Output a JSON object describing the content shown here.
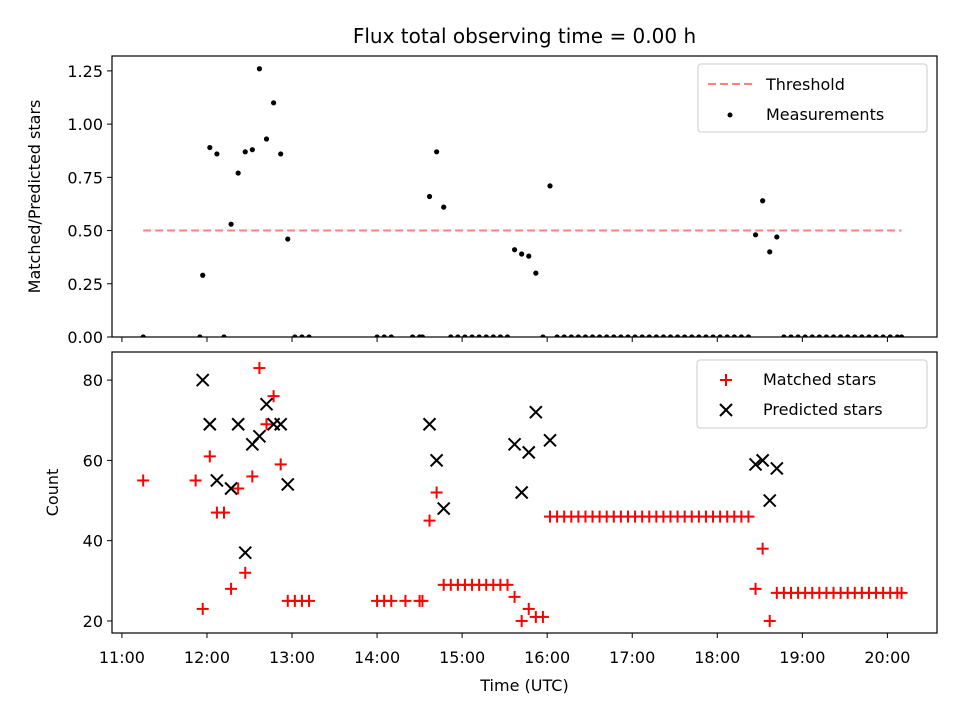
{
  "chart_data": [
    {
      "type": "scatter",
      "title": "Flux total observing time = 0.00 h",
      "xlabel": "",
      "ylabel": "Matched/Predicted stars",
      "xlim": [
        "10:53",
        "20:35"
      ],
      "ylim": [
        0,
        1.32
      ],
      "yticks": [
        0,
        0.25,
        0.5,
        0.75,
        1.0,
        1.25
      ],
      "ytick_labels": [
        "0.00",
        "0.25",
        "0.50",
        "0.75",
        "1.00",
        "1.25"
      ],
      "legend_position": "top-right",
      "threshold": {
        "name": "Threshold",
        "x": [
          "11:15",
          "20:10"
        ],
        "y": 0.5,
        "color": "#ff7f7f",
        "style": "dashed"
      },
      "series": [
        {
          "name": "Measurements",
          "marker": "dot",
          "color": "#000000",
          "points": [
            [
              "11:15",
              0
            ],
            [
              "11:55",
              0
            ],
            [
              "11:57",
              0.29
            ],
            [
              "12:02",
              0.89
            ],
            [
              "12:07",
              0.86
            ],
            [
              "12:12",
              0
            ],
            [
              "12:17",
              0.53
            ],
            [
              "12:22",
              0.77
            ],
            [
              "12:27",
              0.87
            ],
            [
              "12:32",
              0.88
            ],
            [
              "12:37",
              1.26
            ],
            [
              "12:42",
              0.93
            ],
            [
              "12:47",
              1.1
            ],
            [
              "12:52",
              0.86
            ],
            [
              "12:57",
              0.46
            ],
            [
              "13:02",
              0
            ],
            [
              "13:07",
              0
            ],
            [
              "13:12",
              0
            ],
            [
              "14:00",
              0
            ],
            [
              "14:05",
              0
            ],
            [
              "14:10",
              0
            ],
            [
              "14:25",
              0
            ],
            [
              "14:30",
              0
            ],
            [
              "14:32",
              0
            ],
            [
              "14:37",
              0.66
            ],
            [
              "14:42",
              0.87
            ],
            [
              "14:47",
              0.61
            ],
            [
              "14:52",
              0
            ],
            [
              "14:57",
              0
            ],
            [
              "15:02",
              0
            ],
            [
              "15:07",
              0
            ],
            [
              "15:12",
              0
            ],
            [
              "15:17",
              0
            ],
            [
              "15:22",
              0
            ],
            [
              "15:27",
              0
            ],
            [
              "15:32",
              0
            ],
            [
              "15:37",
              0.41
            ],
            [
              "15:42",
              0.39
            ],
            [
              "15:47",
              0.38
            ],
            [
              "15:52",
              0.3
            ],
            [
              "15:57",
              0
            ],
            [
              "16:02",
              0.71
            ],
            [
              "16:07",
              0
            ],
            [
              "16:12",
              0
            ],
            [
              "16:17",
              0
            ],
            [
              "16:22",
              0
            ],
            [
              "16:27",
              0
            ],
            [
              "16:32",
              0
            ],
            [
              "16:37",
              0
            ],
            [
              "16:42",
              0
            ],
            [
              "16:47",
              0
            ],
            [
              "16:52",
              0
            ],
            [
              "16:57",
              0
            ],
            [
              "17:02",
              0
            ],
            [
              "17:07",
              0
            ],
            [
              "17:12",
              0
            ],
            [
              "17:17",
              0
            ],
            [
              "17:22",
              0
            ],
            [
              "17:27",
              0
            ],
            [
              "17:32",
              0
            ],
            [
              "17:37",
              0
            ],
            [
              "17:42",
              0
            ],
            [
              "17:47",
              0
            ],
            [
              "17:52",
              0
            ],
            [
              "17:57",
              0
            ],
            [
              "18:02",
              0
            ],
            [
              "18:07",
              0
            ],
            [
              "18:12",
              0
            ],
            [
              "18:17",
              0
            ],
            [
              "18:22",
              0
            ],
            [
              "18:27",
              0.48
            ],
            [
              "18:32",
              0.64
            ],
            [
              "18:37",
              0.4
            ],
            [
              "18:42",
              0.47
            ],
            [
              "18:47",
              0
            ],
            [
              "18:52",
              0
            ],
            [
              "18:57",
              0
            ],
            [
              "19:02",
              0
            ],
            [
              "19:07",
              0
            ],
            [
              "19:12",
              0
            ],
            [
              "19:17",
              0
            ],
            [
              "19:22",
              0
            ],
            [
              "19:27",
              0
            ],
            [
              "19:32",
              0
            ],
            [
              "19:37",
              0
            ],
            [
              "19:42",
              0
            ],
            [
              "19:47",
              0
            ],
            [
              "19:52",
              0
            ],
            [
              "19:57",
              0
            ],
            [
              "20:02",
              0
            ],
            [
              "20:07",
              0
            ],
            [
              "20:10",
              0
            ]
          ]
        }
      ]
    },
    {
      "type": "scatter",
      "title": "",
      "xlabel": "Time (UTC)",
      "ylabel": "Count",
      "xlim": [
        "10:53",
        "20:35"
      ],
      "ylim": [
        17,
        87
      ],
      "yticks": [
        20,
        40,
        60,
        80
      ],
      "ytick_labels": [
        "20",
        "40",
        "60",
        "80"
      ],
      "xticks": [
        "11:00",
        "12:00",
        "13:00",
        "14:00",
        "15:00",
        "16:00",
        "17:00",
        "18:00",
        "19:00",
        "20:00"
      ],
      "legend_position": "top-right",
      "series": [
        {
          "name": "Matched stars",
          "marker": "plus",
          "color": "#ff0000",
          "points": [
            [
              "11:15",
              55
            ],
            [
              "11:52",
              55
            ],
            [
              "11:57",
              23
            ],
            [
              "12:02",
              61
            ],
            [
              "12:07",
              47
            ],
            [
              "12:12",
              47
            ],
            [
              "12:17",
              28
            ],
            [
              "12:22",
              53
            ],
            [
              "12:27",
              32
            ],
            [
              "12:32",
              56
            ],
            [
              "12:37",
              83
            ],
            [
              "12:42",
              69
            ],
            [
              "12:47",
              76
            ],
            [
              "12:52",
              59
            ],
            [
              "12:57",
              25
            ],
            [
              "13:02",
              25
            ],
            [
              "13:07",
              25
            ],
            [
              "13:12",
              25
            ],
            [
              "14:00",
              25
            ],
            [
              "14:05",
              25
            ],
            [
              "14:10",
              25
            ],
            [
              "14:20",
              25
            ],
            [
              "14:30",
              25
            ],
            [
              "14:32",
              25
            ],
            [
              "14:37",
              45
            ],
            [
              "14:42",
              52
            ],
            [
              "14:47",
              29
            ],
            [
              "14:52",
              29
            ],
            [
              "14:57",
              29
            ],
            [
              "15:02",
              29
            ],
            [
              "15:07",
              29
            ],
            [
              "15:12",
              29
            ],
            [
              "15:17",
              29
            ],
            [
              "15:22",
              29
            ],
            [
              "15:27",
              29
            ],
            [
              "15:32",
              29
            ],
            [
              "15:37",
              26
            ],
            [
              "15:42",
              20
            ],
            [
              "15:47",
              23
            ],
            [
              "15:52",
              21
            ],
            [
              "15:57",
              21
            ],
            [
              "16:02",
              46
            ],
            [
              "16:07",
              46
            ],
            [
              "16:12",
              46
            ],
            [
              "16:17",
              46
            ],
            [
              "16:22",
              46
            ],
            [
              "16:27",
              46
            ],
            [
              "16:32",
              46
            ],
            [
              "16:37",
              46
            ],
            [
              "16:42",
              46
            ],
            [
              "16:47",
              46
            ],
            [
              "16:52",
              46
            ],
            [
              "16:57",
              46
            ],
            [
              "17:02",
              46
            ],
            [
              "17:07",
              46
            ],
            [
              "17:12",
              46
            ],
            [
              "17:17",
              46
            ],
            [
              "17:22",
              46
            ],
            [
              "17:27",
              46
            ],
            [
              "17:32",
              46
            ],
            [
              "17:37",
              46
            ],
            [
              "17:42",
              46
            ],
            [
              "17:47",
              46
            ],
            [
              "17:52",
              46
            ],
            [
              "17:57",
              46
            ],
            [
              "18:02",
              46
            ],
            [
              "18:07",
              46
            ],
            [
              "18:12",
              46
            ],
            [
              "18:17",
              46
            ],
            [
              "18:22",
              46
            ],
            [
              "18:27",
              28
            ],
            [
              "18:32",
              38
            ],
            [
              "18:37",
              20
            ],
            [
              "18:42",
              27
            ],
            [
              "18:47",
              27
            ],
            [
              "18:52",
              27
            ],
            [
              "18:57",
              27
            ],
            [
              "19:02",
              27
            ],
            [
              "19:07",
              27
            ],
            [
              "19:12",
              27
            ],
            [
              "19:17",
              27
            ],
            [
              "19:22",
              27
            ],
            [
              "19:27",
              27
            ],
            [
              "19:32",
              27
            ],
            [
              "19:37",
              27
            ],
            [
              "19:42",
              27
            ],
            [
              "19:47",
              27
            ],
            [
              "19:52",
              27
            ],
            [
              "19:57",
              27
            ],
            [
              "20:02",
              27
            ],
            [
              "20:07",
              27
            ],
            [
              "20:10",
              27
            ]
          ]
        },
        {
          "name": "Predicted stars",
          "marker": "x",
          "color": "#000000",
          "points": [
            [
              "11:57",
              80
            ],
            [
              "12:02",
              69
            ],
            [
              "12:07",
              55
            ],
            [
              "12:17",
              53
            ],
            [
              "12:22",
              69
            ],
            [
              "12:27",
              37
            ],
            [
              "12:32",
              64
            ],
            [
              "12:37",
              66
            ],
            [
              "12:42",
              74
            ],
            [
              "12:47",
              69
            ],
            [
              "12:52",
              69
            ],
            [
              "12:57",
              54
            ],
            [
              "14:37",
              69
            ],
            [
              "14:42",
              60
            ],
            [
              "14:47",
              48
            ],
            [
              "15:37",
              64
            ],
            [
              "15:42",
              52
            ],
            [
              "15:47",
              62
            ],
            [
              "15:52",
              72
            ],
            [
              "16:02",
              65
            ],
            [
              "18:27",
              59
            ],
            [
              "18:32",
              60
            ],
            [
              "18:37",
              50
            ],
            [
              "18:42",
              58
            ]
          ]
        }
      ]
    }
  ]
}
